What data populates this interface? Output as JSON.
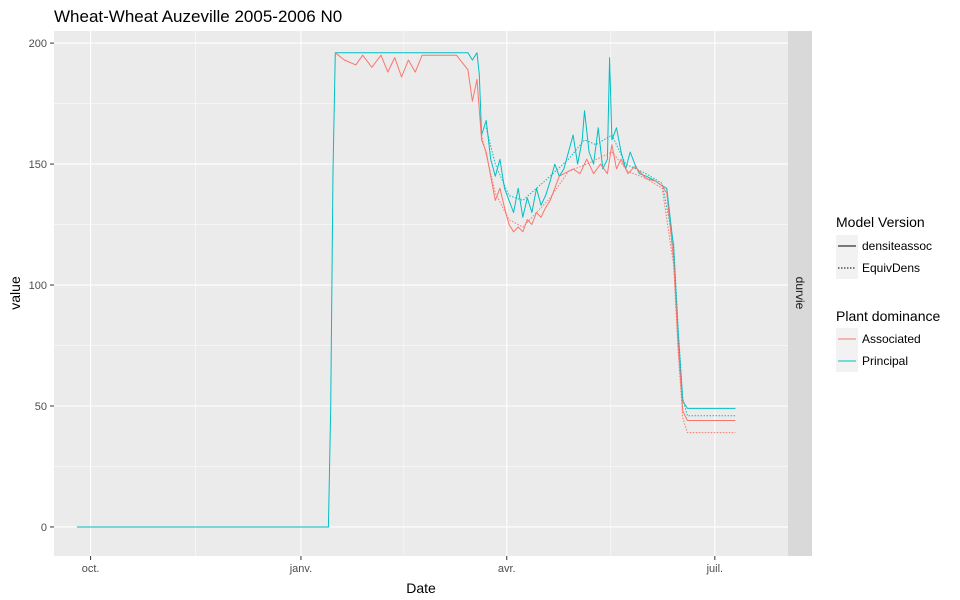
{
  "chart_data": {
    "type": "line",
    "title": "Wheat-Wheat Auzeville 2005-2006 N0",
    "xlabel": "Date",
    "ylabel": "value",
    "facet_label": "durvie",
    "xlim": [
      "2005-09-15",
      "2006-08-02"
    ],
    "ylim": [
      -12,
      205
    ],
    "x_ticks": [
      {
        "value": "2005-10-01",
        "label": "oct."
      },
      {
        "value": "2006-01-01",
        "label": "janv."
      },
      {
        "value": "2006-04-01",
        "label": "avr."
      },
      {
        "value": "2006-07-01",
        "label": "juil."
      }
    ],
    "y_ticks": [
      {
        "value": 0,
        "label": "0"
      },
      {
        "value": 50,
        "label": "50"
      },
      {
        "value": 100,
        "label": "100"
      },
      {
        "value": 150,
        "label": "150"
      },
      {
        "value": 200,
        "label": "200"
      }
    ],
    "grid": true,
    "panel_background": "#ebebeb",
    "strip_background": "#d9d9d9",
    "grid_color": "#ffffff",
    "legend": {
      "placement": "right",
      "groups": [
        {
          "title": "Model Version",
          "entries": [
            {
              "label": "densiteassoc",
              "linetype": "solid"
            },
            {
              "label": "EquivDens",
              "linetype": "dotted"
            }
          ]
        },
        {
          "title": "Plant dominance",
          "entries": [
            {
              "label": "Associated",
              "color": "#f8766d"
            },
            {
              "label": "Principal",
              "color": "#00bfc4"
            }
          ]
        }
      ]
    },
    "series": [
      {
        "name": "Principal",
        "model": "densiteassoc",
        "color": "#00bfc4",
        "linetype": "solid",
        "points": [
          [
            "2005-09-25",
            0
          ],
          [
            "2006-01-13",
            0
          ],
          [
            "2006-01-14",
            49
          ],
          [
            "2006-01-15",
            147
          ],
          [
            "2006-01-16",
            196
          ],
          [
            "2006-02-01",
            196
          ],
          [
            "2006-02-20",
            196
          ],
          [
            "2006-03-05",
            196
          ],
          [
            "2006-03-15",
            196
          ],
          [
            "2006-03-17",
            193
          ],
          [
            "2006-03-19",
            196
          ],
          [
            "2006-03-20",
            187
          ],
          [
            "2006-03-21",
            162
          ],
          [
            "2006-03-23",
            168
          ],
          [
            "2006-03-25",
            152
          ],
          [
            "2006-03-27",
            145
          ],
          [
            "2006-03-29",
            152
          ],
          [
            "2006-03-31",
            140
          ],
          [
            "2006-04-02",
            135
          ],
          [
            "2006-04-04",
            130
          ],
          [
            "2006-04-06",
            140
          ],
          [
            "2006-04-08",
            128
          ],
          [
            "2006-04-10",
            136
          ],
          [
            "2006-04-12",
            130
          ],
          [
            "2006-04-14",
            140
          ],
          [
            "2006-04-16",
            133
          ],
          [
            "2006-04-18",
            137
          ],
          [
            "2006-04-20",
            143
          ],
          [
            "2006-04-22",
            150
          ],
          [
            "2006-04-24",
            145
          ],
          [
            "2006-04-26",
            148
          ],
          [
            "2006-04-28",
            155
          ],
          [
            "2006-04-30",
            162
          ],
          [
            "2006-05-02",
            150
          ],
          [
            "2006-05-04",
            160
          ],
          [
            "2006-05-05",
            172
          ],
          [
            "2006-05-07",
            155
          ],
          [
            "2006-05-09",
            150
          ],
          [
            "2006-05-11",
            165
          ],
          [
            "2006-05-13",
            148
          ],
          [
            "2006-05-15",
            152
          ],
          [
            "2006-05-16",
            194
          ],
          [
            "2006-05-17",
            160
          ],
          [
            "2006-05-19",
            165
          ],
          [
            "2006-05-21",
            155
          ],
          [
            "2006-05-23",
            148
          ],
          [
            "2006-05-25",
            155
          ],
          [
            "2006-05-27",
            150
          ],
          [
            "2006-05-29",
            146
          ],
          [
            "2006-06-01",
            145
          ],
          [
            "2006-06-05",
            143
          ],
          [
            "2006-06-08",
            141
          ],
          [
            "2006-06-10",
            140
          ],
          [
            "2006-06-13",
            115
          ],
          [
            "2006-06-15",
            80
          ],
          [
            "2006-06-17",
            52
          ],
          [
            "2006-06-19",
            49
          ],
          [
            "2006-07-10",
            49
          ]
        ]
      },
      {
        "name": "Principal",
        "model": "EquivDens",
        "color": "#00bfc4",
        "linetype": "dotted",
        "points": [
          [
            "2006-03-23",
            165
          ],
          [
            "2006-03-27",
            150
          ],
          [
            "2006-04-02",
            137
          ],
          [
            "2006-04-08",
            135
          ],
          [
            "2006-04-14",
            140
          ],
          [
            "2006-04-20",
            145
          ],
          [
            "2006-04-28",
            152
          ],
          [
            "2006-05-05",
            160
          ],
          [
            "2006-05-10",
            158
          ],
          [
            "2006-05-17",
            162
          ],
          [
            "2006-05-23",
            150
          ],
          [
            "2006-06-01",
            146
          ],
          [
            "2006-06-08",
            142
          ],
          [
            "2006-06-13",
            117
          ],
          [
            "2006-06-15",
            82
          ],
          [
            "2006-06-17",
            53
          ],
          [
            "2006-06-19",
            46
          ],
          [
            "2006-07-10",
            46
          ]
        ]
      },
      {
        "name": "Associated",
        "model": "densiteassoc",
        "color": "#f8766d",
        "linetype": "solid",
        "points": [
          [
            "2006-01-16",
            196
          ],
          [
            "2006-01-20",
            193
          ],
          [
            "2006-01-25",
            191
          ],
          [
            "2006-01-28",
            195
          ],
          [
            "2006-02-01",
            190
          ],
          [
            "2006-02-05",
            195
          ],
          [
            "2006-02-08",
            188
          ],
          [
            "2006-02-11",
            194
          ],
          [
            "2006-02-14",
            186
          ],
          [
            "2006-02-17",
            193
          ],
          [
            "2006-02-20",
            188
          ],
          [
            "2006-02-23",
            195
          ],
          [
            "2006-03-10",
            195
          ],
          [
            "2006-03-15",
            189
          ],
          [
            "2006-03-17",
            176
          ],
          [
            "2006-03-19",
            185
          ],
          [
            "2006-03-21",
            160
          ],
          [
            "2006-03-23",
            155
          ],
          [
            "2006-03-25",
            145
          ],
          [
            "2006-03-27",
            135
          ],
          [
            "2006-03-29",
            140
          ],
          [
            "2006-03-31",
            132
          ],
          [
            "2006-04-02",
            125
          ],
          [
            "2006-04-04",
            122
          ],
          [
            "2006-04-06",
            124
          ],
          [
            "2006-04-08",
            122
          ],
          [
            "2006-04-10",
            127
          ],
          [
            "2006-04-12",
            125
          ],
          [
            "2006-04-14",
            130
          ],
          [
            "2006-04-16",
            128
          ],
          [
            "2006-04-18",
            132
          ],
          [
            "2006-04-20",
            135
          ],
          [
            "2006-04-22",
            140
          ],
          [
            "2006-04-24",
            145
          ],
          [
            "2006-04-26",
            146
          ],
          [
            "2006-04-30",
            148
          ],
          [
            "2006-05-03",
            146
          ],
          [
            "2006-05-06",
            152
          ],
          [
            "2006-05-09",
            146
          ],
          [
            "2006-05-12",
            150
          ],
          [
            "2006-05-15",
            146
          ],
          [
            "2006-05-17",
            158
          ],
          [
            "2006-05-19",
            148
          ],
          [
            "2006-05-21",
            152
          ],
          [
            "2006-05-24",
            146
          ],
          [
            "2006-05-27",
            149
          ],
          [
            "2006-06-01",
            144
          ],
          [
            "2006-06-05",
            143
          ],
          [
            "2006-06-08",
            141
          ],
          [
            "2006-06-10",
            138
          ],
          [
            "2006-06-13",
            110
          ],
          [
            "2006-06-15",
            75
          ],
          [
            "2006-06-17",
            48
          ],
          [
            "2006-06-19",
            44
          ],
          [
            "2006-07-10",
            44
          ]
        ]
      },
      {
        "name": "Associated",
        "model": "EquivDens",
        "color": "#f8766d",
        "linetype": "dotted",
        "points": [
          [
            "2006-03-21",
            162
          ],
          [
            "2006-03-27",
            138
          ],
          [
            "2006-04-02",
            127
          ],
          [
            "2006-04-08",
            124
          ],
          [
            "2006-04-14",
            130
          ],
          [
            "2006-04-20",
            136
          ],
          [
            "2006-04-28",
            147
          ],
          [
            "2006-05-06",
            150
          ],
          [
            "2006-05-17",
            155
          ],
          [
            "2006-05-24",
            147
          ],
          [
            "2006-06-01",
            144
          ],
          [
            "2006-06-08",
            140
          ],
          [
            "2006-06-13",
            108
          ],
          [
            "2006-06-15",
            72
          ],
          [
            "2006-06-17",
            45
          ],
          [
            "2006-06-19",
            39
          ],
          [
            "2006-07-10",
            39
          ]
        ]
      }
    ]
  }
}
